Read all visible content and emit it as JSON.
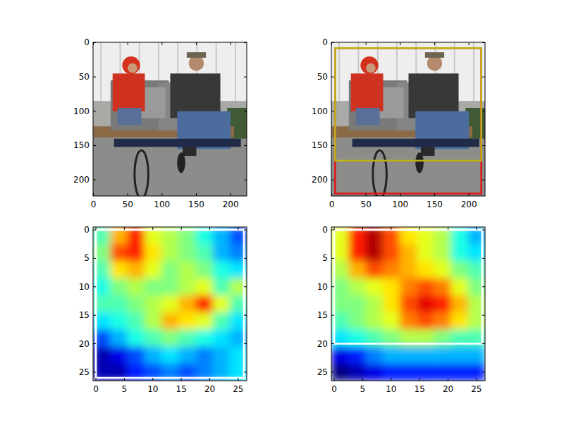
{
  "chart_data": [
    {
      "type": "image",
      "xlim": [
        -0.5,
        223.5
      ],
      "ylim": [
        223.5,
        -0.5
      ],
      "xticks": [
        0,
        50,
        100,
        150,
        200
      ],
      "yticks": [
        0,
        50,
        100,
        150,
        200
      ]
    },
    {
      "type": "image",
      "xlim": [
        -0.5,
        223.5
      ],
      "ylim": [
        223.5,
        -0.5
      ],
      "xticks": [
        0,
        50,
        100,
        150,
        200
      ],
      "yticks": [
        0,
        50,
        100,
        150,
        200
      ],
      "boxes": [
        {
          "color": "#e01818",
          "values": [
            5,
            8,
            218,
            220
          ]
        },
        {
          "color": "#c2b21a",
          "values": [
            5,
            8,
            218,
            172
          ]
        }
      ]
    },
    {
      "type": "heatmap",
      "xlim": [
        -0.5,
        26.5
      ],
      "ylim": [
        26.5,
        -0.5
      ],
      "xticks": [
        0,
        5,
        10,
        15,
        20,
        25
      ],
      "yticks": [
        0,
        5,
        10,
        15,
        20,
        25
      ],
      "cells": [
        [
          0.45,
          0.7,
          0.85,
          0.6,
          0.55,
          0.5,
          0.4,
          0.3,
          0.2
        ],
        [
          0.5,
          0.8,
          0.85,
          0.65,
          0.55,
          0.5,
          0.45,
          0.3,
          0.25
        ],
        [
          0.45,
          0.65,
          0.7,
          0.6,
          0.5,
          0.55,
          0.5,
          0.4,
          0.35
        ],
        [
          0.4,
          0.5,
          0.55,
          0.5,
          0.5,
          0.55,
          0.6,
          0.45,
          0.55
        ],
        [
          0.45,
          0.45,
          0.5,
          0.55,
          0.6,
          0.7,
          0.85,
          0.6,
          0.45
        ],
        [
          0.35,
          0.4,
          0.45,
          0.55,
          0.7,
          0.65,
          0.6,
          0.45,
          0.35
        ],
        [
          0.2,
          0.3,
          0.4,
          0.45,
          0.5,
          0.45,
          0.4,
          0.35,
          0.3
        ],
        [
          0.05,
          0.1,
          0.2,
          0.3,
          0.35,
          0.3,
          0.25,
          0.3,
          0.35
        ],
        [
          0.05,
          0.05,
          0.15,
          0.2,
          0.25,
          0.2,
          0.25,
          0.3,
          0.35
        ]
      ],
      "boxes": [
        {
          "color": "#ffffff",
          "values": [
            0,
            0,
            26,
            26
          ]
        }
      ]
    },
    {
      "type": "heatmap",
      "xlim": [
        -0.5,
        26.5
      ],
      "ylim": [
        26.5,
        -0.5
      ],
      "xticks": [
        0,
        5,
        10,
        15,
        20,
        25
      ],
      "yticks": [
        0,
        5,
        10,
        15,
        20,
        25
      ],
      "cells": [
        [
          0.6,
          0.85,
          0.95,
          0.8,
          0.65,
          0.6,
          0.55,
          0.4,
          0.3
        ],
        [
          0.6,
          0.85,
          0.95,
          0.8,
          0.7,
          0.6,
          0.55,
          0.4,
          0.35
        ],
        [
          0.55,
          0.7,
          0.8,
          0.75,
          0.7,
          0.65,
          0.6,
          0.5,
          0.45
        ],
        [
          0.5,
          0.55,
          0.6,
          0.65,
          0.75,
          0.8,
          0.75,
          0.6,
          0.5
        ],
        [
          0.5,
          0.5,
          0.55,
          0.65,
          0.8,
          0.9,
          0.85,
          0.7,
          0.55
        ],
        [
          0.45,
          0.5,
          0.55,
          0.6,
          0.75,
          0.8,
          0.75,
          0.65,
          0.55
        ],
        [
          0.35,
          0.4,
          0.45,
          0.5,
          0.55,
          0.55,
          0.5,
          0.45,
          0.45
        ],
        [
          0.1,
          0.15,
          0.25,
          0.3,
          0.3,
          0.3,
          0.3,
          0.3,
          0.3
        ],
        [
          0.0,
          0.05,
          0.1,
          0.15,
          0.15,
          0.15,
          0.15,
          0.15,
          0.15
        ]
      ],
      "boxes": [
        {
          "color": "#ffffff",
          "values": [
            0,
            0,
            26,
            20
          ]
        }
      ]
    }
  ]
}
